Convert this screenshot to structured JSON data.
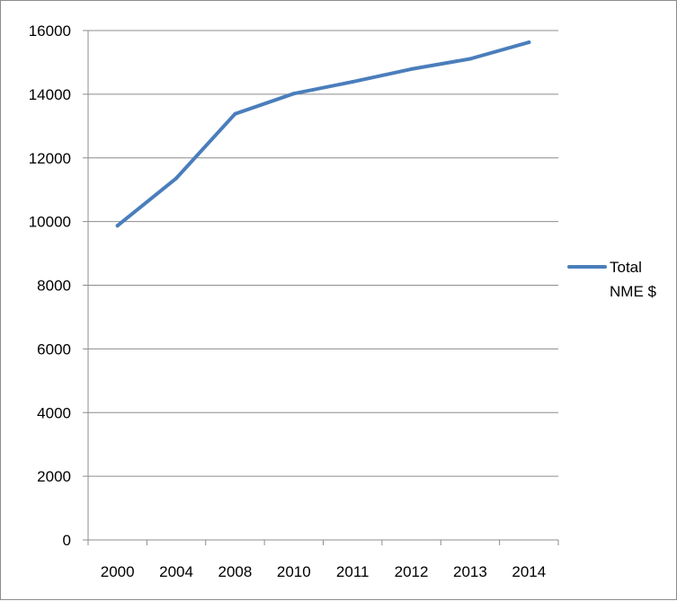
{
  "chart_data": {
    "type": "line",
    "categories": [
      "2000",
      "2004",
      "2008",
      "2010",
      "2011",
      "2012",
      "2013",
      "2014"
    ],
    "series": [
      {
        "name": "Total NME $",
        "name_lines": [
          "Total",
          "NME $"
        ],
        "values": [
          9870,
          11360,
          13380,
          14020,
          14390,
          14790,
          15110,
          15630
        ],
        "color": "#4a7ebb"
      }
    ],
    "y_ticks": [
      "0",
      "2000",
      "4000",
      "6000",
      "8000",
      "10000",
      "12000",
      "14000",
      "16000"
    ],
    "ylim": [
      0,
      16000
    ],
    "grid": true,
    "legend_position": "right"
  }
}
